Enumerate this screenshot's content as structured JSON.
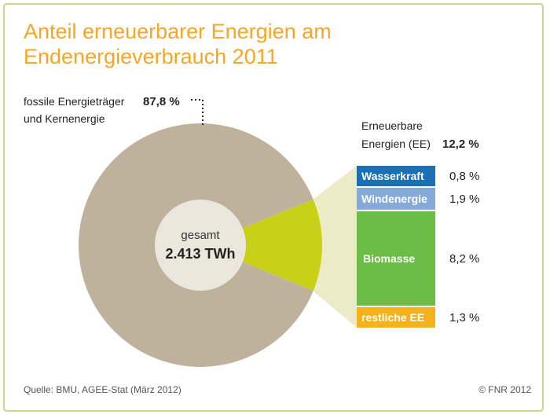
{
  "title": "Anteil erneuerbarer Energien am Endenergieverbrauch 2011",
  "source": "Quelle: BMU, AGEE-Stat (März 2012)",
  "copyright": "© FNR 2012",
  "center": {
    "label": "gesamt",
    "value": "2.413 TWh"
  },
  "colors": {
    "title": "#f5a623",
    "fossil": "#bfb29c",
    "renewable": "#c8d118",
    "hole": "#ece7dc",
    "connector": "#ebebc7"
  },
  "chart_data": {
    "type": "pie",
    "title": "Anteil erneuerbarer Energien am Endenergieverbrauch 2011",
    "total_label": "2.413 TWh",
    "slices": [
      {
        "name": "fossile Energieträger und Kernenergie",
        "label_line1": "fossile Energieträger",
        "label_line2": "und Kernenergie",
        "value": 87.8,
        "value_label": "87,8 %",
        "color": "#bfb29c"
      },
      {
        "name": "Erneuerbare Energien (EE)",
        "label_line1": "Erneuerbare",
        "label_line2": "Energien (EE)",
        "value": 12.2,
        "value_label": "12,2 %",
        "color": "#c8d118"
      }
    ],
    "breakdown": [
      {
        "name": "Wasserkraft",
        "value": 0.8,
        "value_label": "0,8 %",
        "color": "#1b6fb5"
      },
      {
        "name": "Windenergie",
        "value": 1.9,
        "value_label": "1,9 %",
        "color": "#85a9d8"
      },
      {
        "name": "Biomasse",
        "value": 8.2,
        "value_label": "8,2 %",
        "color": "#6cbd45"
      },
      {
        "name": "restliche EE",
        "value": 1.3,
        "value_label": "1,3 %",
        "color": "#f5b21b"
      }
    ]
  }
}
